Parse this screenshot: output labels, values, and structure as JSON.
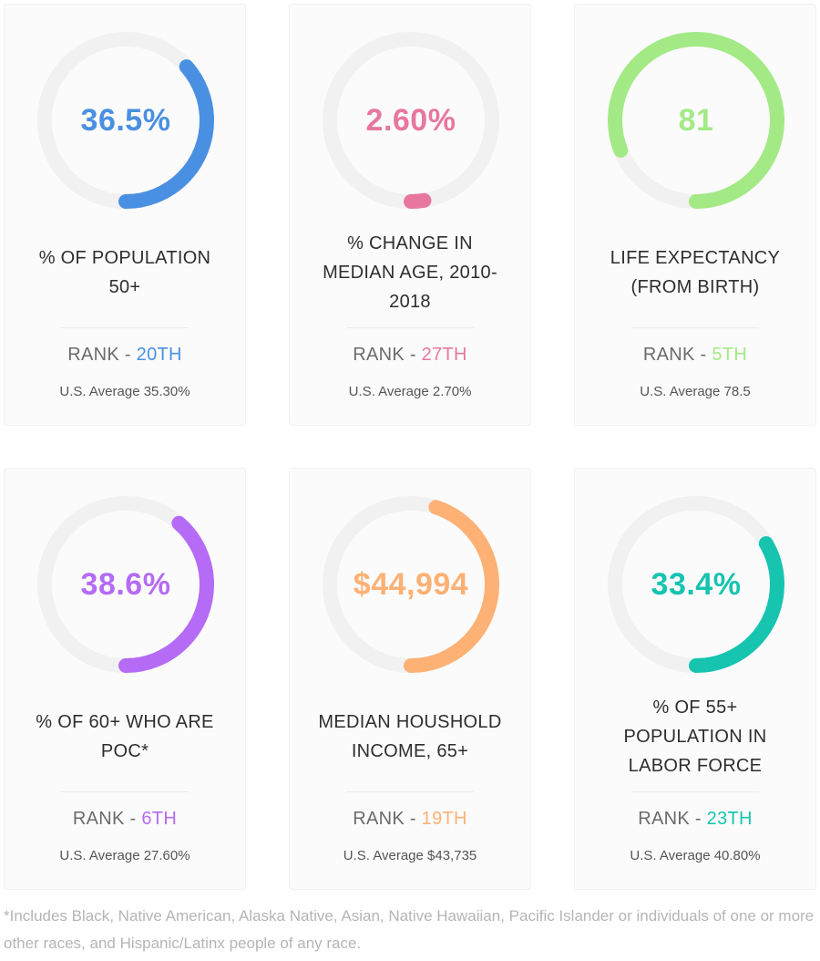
{
  "cards": [
    {
      "value": "36.5%",
      "label": "% OF POPULATION 50+",
      "rank_prefix": "RANK - ",
      "rank": "20TH",
      "us_average": "U.S. Average 35.30%",
      "color": "#4a90e2",
      "progress": 0.365
    },
    {
      "value": "2.60%",
      "label": "% CHANGE IN MEDIAN AGE, 2010-2018",
      "rank_prefix": "RANK - ",
      "rank": "27TH",
      "us_average": "U.S. Average 2.70%",
      "color": "#e877a0",
      "progress": 0.026
    },
    {
      "value": "81",
      "label": "LIFE EXPECTANCY (FROM BIRTH)",
      "rank_prefix": "RANK - ",
      "rank": "5TH",
      "us_average": "U.S. Average 78.5",
      "color": "#a3ea86",
      "progress": 0.81
    },
    {
      "value": "38.6%",
      "label": "% OF 60+ WHO ARE POC*",
      "rank_prefix": "RANK - ",
      "rank": "6TH",
      "us_average": "U.S. Average 27.60%",
      "color": "#b56bf5",
      "progress": 0.386
    },
    {
      "value": "$44,994",
      "label": "MEDIAN HOUSHOLD INCOME, 65+",
      "rank_prefix": "RANK - ",
      "rank": "19TH",
      "us_average": "U.S. Average $43,735",
      "color": "#fdb175",
      "progress": 0.45
    },
    {
      "value": "33.4%",
      "label": "% OF 55+ POPULATION IN LABOR FORCE",
      "rank_prefix": "RANK - ",
      "rank": "23TH",
      "us_average": "U.S. Average 40.80%",
      "color": "#16c4b0",
      "progress": 0.334
    }
  ],
  "footnote": "*Includes Black, Native American, Alaska Native, Asian, Native Hawaiian, Pacific Islander or individuals of one or more other races, and Hispanic/Latinx people of any race.",
  "track_color": "#f1f1f1"
}
